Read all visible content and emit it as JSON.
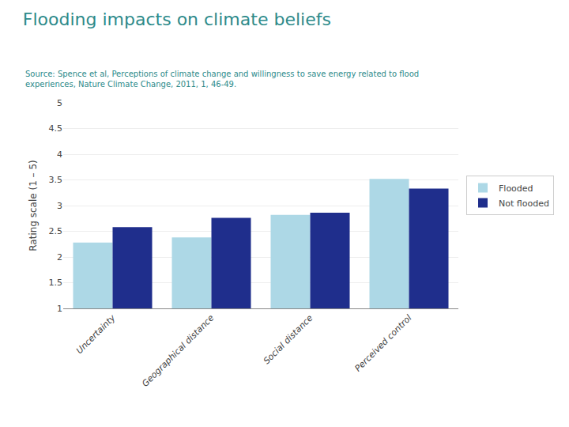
{
  "chart_data": {
    "type": "bar",
    "title": "Flooding impacts on climate beliefs",
    "annotations": [
      "Source: Spence et al, Perceptions of climate change and willingness to save energy related to flood",
      "experiences, Nature Climate Change, 2011, 1, 46-49."
    ],
    "categories": [
      "Uncertainty",
      "Geographical distance",
      "Social distance",
      "Perceived control"
    ],
    "series": [
      {
        "name": "Flooded",
        "color": "#ADD8E6",
        "values": [
          2.28,
          2.38,
          2.82,
          3.52
        ]
      },
      {
        "name": "Not flooded",
        "color": "#1F2E8C",
        "values": [
          2.58,
          2.76,
          2.86,
          3.33
        ]
      }
    ],
    "ylabel": "Rating scale (1 – 5)",
    "ylim": [
      1,
      5
    ],
    "yticks": [
      1,
      1.5,
      2,
      2.5,
      3,
      3.5,
      4,
      4.5,
      5
    ],
    "grid": true,
    "legend": "right"
  }
}
